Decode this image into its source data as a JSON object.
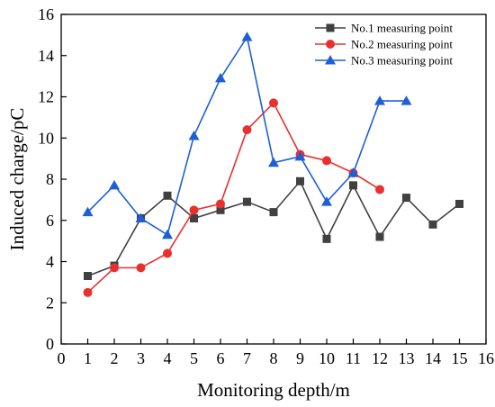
{
  "chart_data": {
    "type": "line",
    "title": "",
    "xlabel": "Monitoring depth/m",
    "ylabel": "Induced charge/pC",
    "xlim": [
      0,
      16
    ],
    "ylim": [
      0,
      16
    ],
    "xticks": [
      0,
      1,
      2,
      3,
      4,
      5,
      6,
      7,
      8,
      9,
      10,
      11,
      12,
      13,
      14,
      15,
      16
    ],
    "yticks": [
      0,
      2,
      4,
      6,
      8,
      10,
      12,
      14,
      16
    ],
    "grid": false,
    "legend_position": "top-right",
    "series": [
      {
        "name": "No.1 measuring point",
        "color": "#404040",
        "marker": "square",
        "x": [
          1,
          2,
          3,
          4,
          5,
          6,
          7,
          8,
          9,
          10,
          11,
          12,
          13,
          14,
          15
        ],
        "y": [
          3.3,
          3.8,
          6.1,
          7.2,
          6.1,
          6.5,
          6.9,
          6.4,
          7.9,
          5.1,
          7.7,
          5.2,
          7.1,
          5.8,
          6.8
        ]
      },
      {
        "name": "No.2 measuring point",
        "color": "#e8312f",
        "marker": "circle",
        "x": [
          1,
          2,
          3,
          4,
          5,
          6,
          7,
          8,
          9,
          10,
          11,
          12
        ],
        "y": [
          2.5,
          3.7,
          3.7,
          4.4,
          6.5,
          6.8,
          10.4,
          11.7,
          9.2,
          8.9,
          8.3,
          7.5
        ]
      },
      {
        "name": "No.3 measuring point",
        "color": "#1f5fd6",
        "marker": "triangle",
        "x": [
          1,
          2,
          3,
          4,
          5,
          6,
          7,
          8,
          9,
          10,
          11,
          12,
          13
        ],
        "y": [
          6.4,
          7.7,
          6.1,
          5.3,
          10.1,
          12.9,
          14.9,
          8.8,
          9.1,
          6.9,
          8.3,
          11.8,
          11.8
        ]
      }
    ]
  }
}
